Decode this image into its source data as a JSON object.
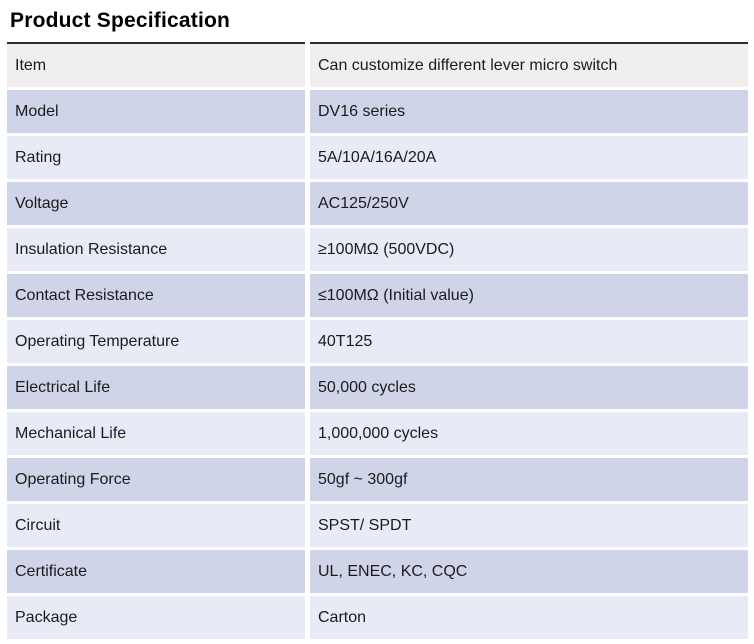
{
  "page": {
    "title": "Product Specification"
  },
  "table": {
    "columns": [
      "label",
      "value"
    ],
    "rows": [
      {
        "label": "Item",
        "value": "Can customize different lever micro switch"
      },
      {
        "label": "Model",
        "value": "DV16 series"
      },
      {
        "label": "Rating",
        "value": "5A/10A/16A/20A"
      },
      {
        "label": "Voltage",
        "value": "AC125/250V"
      },
      {
        "label": "Insulation Resistance",
        "value": "≥100MΩ (500VDC)"
      },
      {
        "label": "Contact Resistance",
        "value": "≤100MΩ (Initial value)"
      },
      {
        "label": "Operating Temperature",
        "value": "40T125"
      },
      {
        "label": "Electrical Life",
        "value": "50,000 cycles"
      },
      {
        "label": "Mechanical Life",
        "value": "1,000,000 cycles"
      },
      {
        "label": "Operating Force",
        "value": "50gf ~ 300gf"
      },
      {
        "label": "Circuit",
        "value": "SPST/ SPDT"
      },
      {
        "label": "Certificate",
        "value": "UL, ENEC, KC, CQC"
      },
      {
        "label": "Package",
        "value": "Carton"
      }
    ],
    "colors": {
      "header_row_bg": "#f0efed",
      "row_alt_dark": "#d0d4e8",
      "row_alt_light": "#e8eaf5",
      "top_border": "#2e2e2e",
      "text": "#1b1b1f"
    }
  }
}
